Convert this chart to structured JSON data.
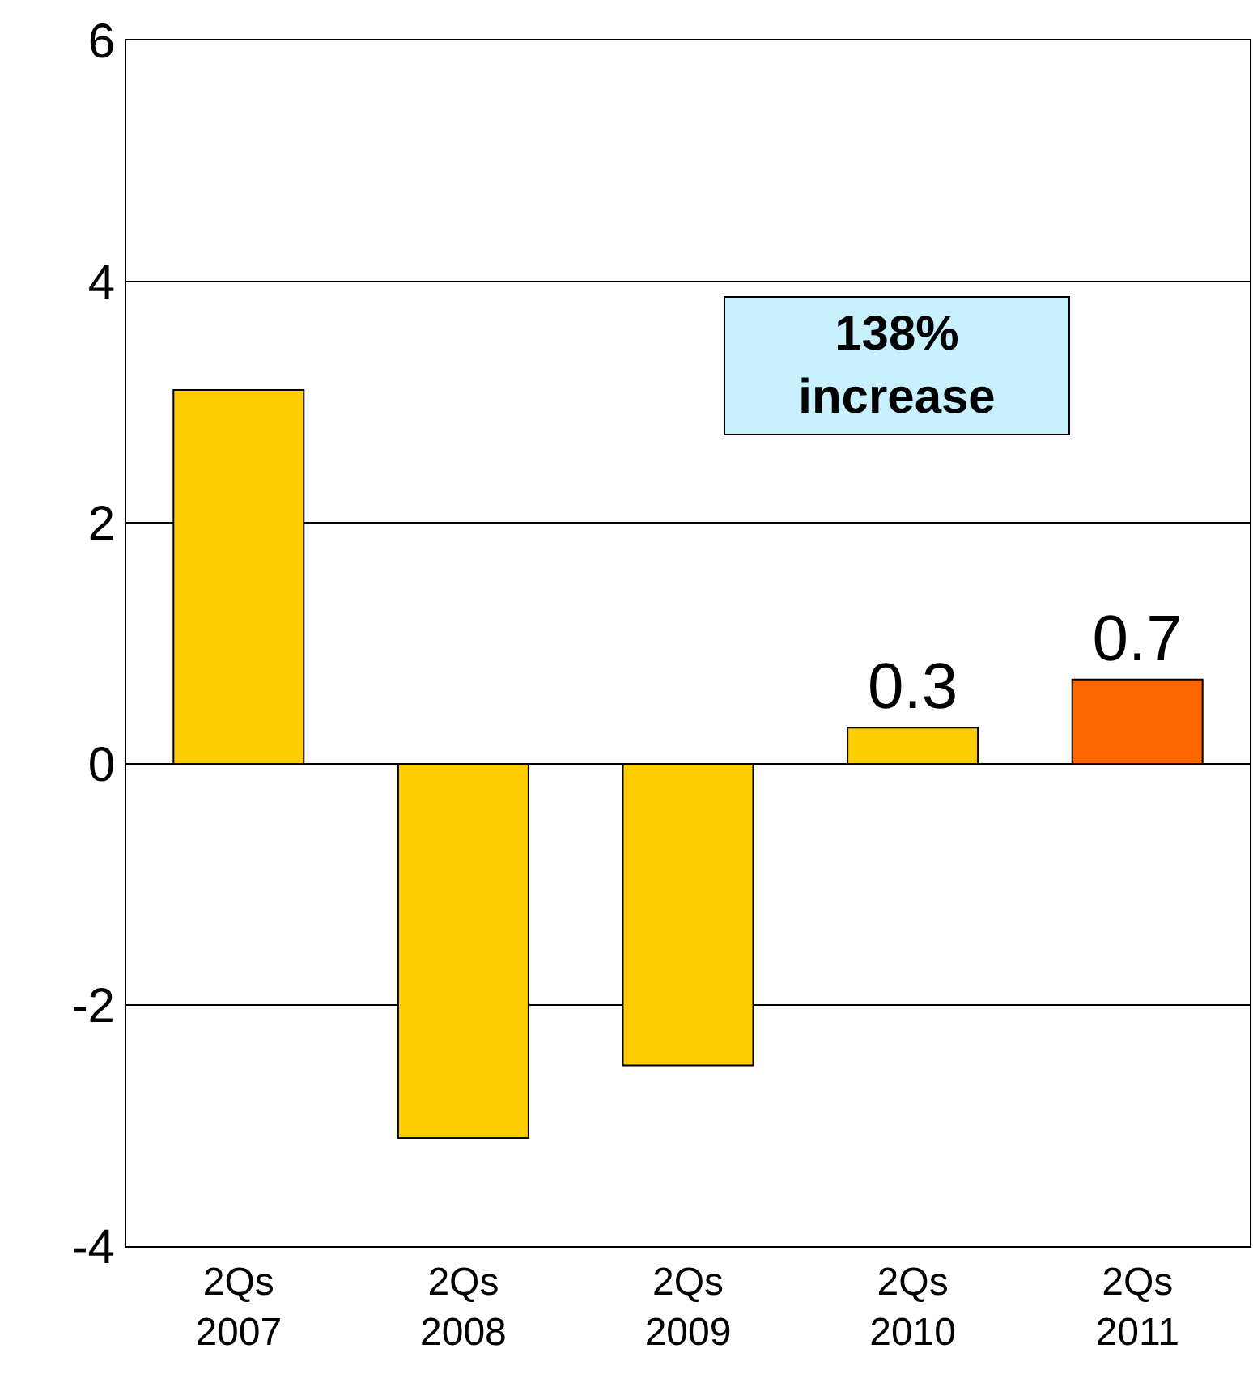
{
  "chart_data": {
    "type": "bar",
    "categories": [
      "2Qs\n2007",
      "2Qs\n2008",
      "2Qs\n2009",
      "2Qs\n2010",
      "2Qs\n2011"
    ],
    "values": [
      3.1,
      -3.1,
      -2.5,
      0.3,
      0.7
    ],
    "colors": [
      "#ffcc00",
      "#ffcc00",
      "#ffcc00",
      "#ffcc00",
      "#ff6600"
    ],
    "value_labels": [
      null,
      null,
      null,
      "0.3",
      "0.7"
    ],
    "ylim": [
      -4,
      6
    ],
    "yticks": [
      -4,
      -2,
      0,
      2,
      4,
      6
    ],
    "grid": "y",
    "legend": false,
    "annotations": [
      "138%\nincrease"
    ]
  }
}
